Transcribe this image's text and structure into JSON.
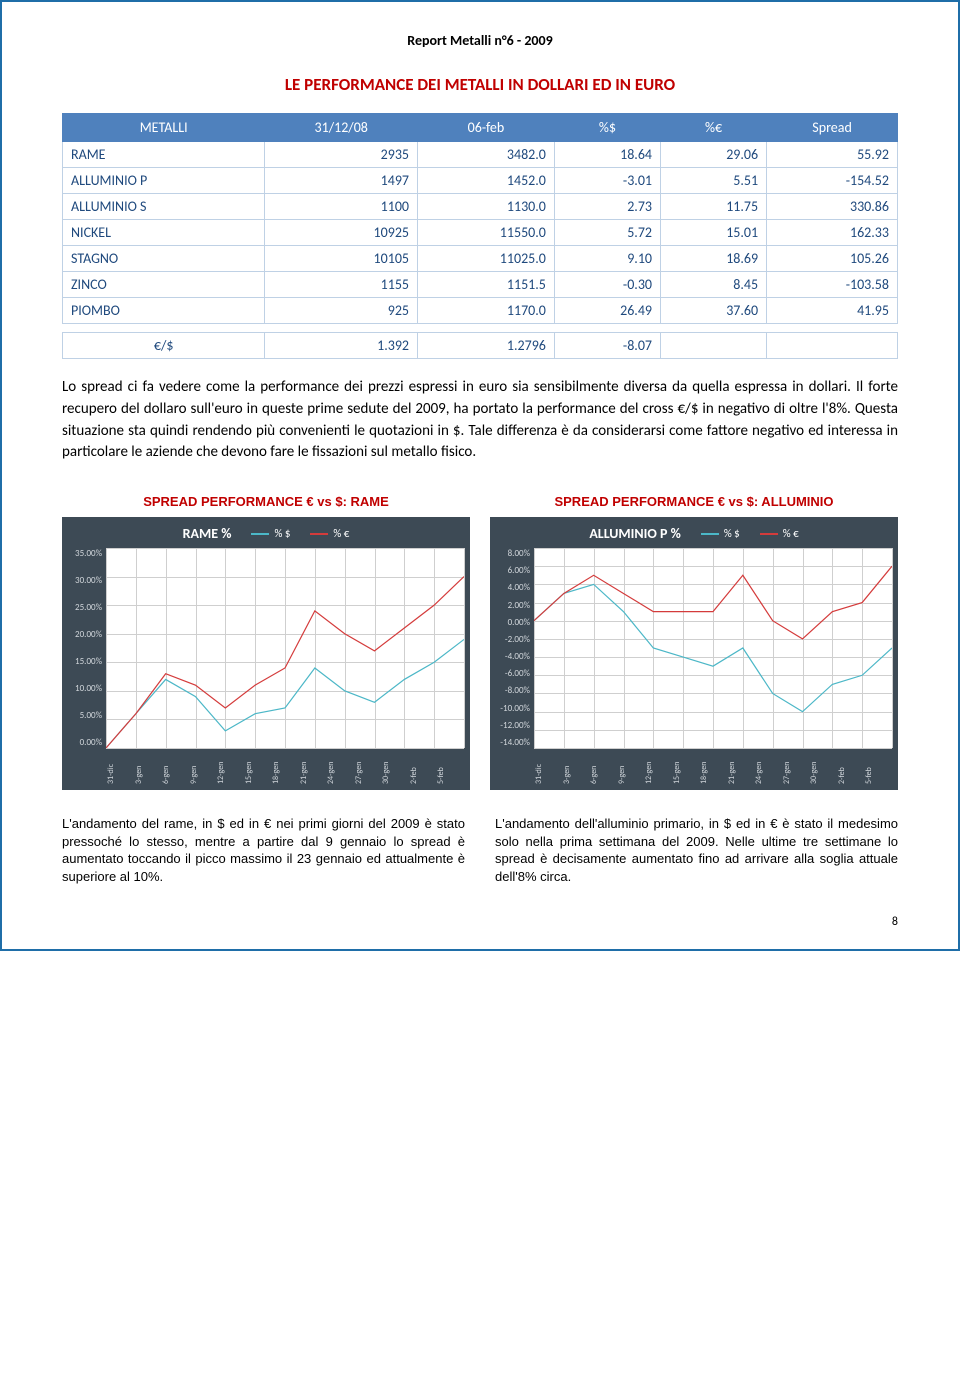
{
  "header": "Report Metalli   n°6 - 2009",
  "section_title": "LE PERFORMANCE DEI METALLI IN DOLLARI ED IN EURO",
  "table": {
    "columns": [
      "METALLI",
      "31/12/08",
      "06-feb",
      "%$",
      "%€",
      "Spread"
    ],
    "rows": [
      [
        "RAME",
        "2935",
        "3482.0",
        "18.64",
        "29.06",
        "55.92"
      ],
      [
        "ALLUMINIO P",
        "1497",
        "1452.0",
        "-3.01",
        "5.51",
        "-154.52"
      ],
      [
        "ALLUMINIO S",
        "1100",
        "1130.0",
        "2.73",
        "11.75",
        "330.86"
      ],
      [
        "NICKEL",
        "10925",
        "11550.0",
        "5.72",
        "15.01",
        "162.33"
      ],
      [
        "STAGNO",
        "10105",
        "11025.0",
        "9.10",
        "18.69",
        "105.26"
      ],
      [
        "ZINCO",
        "1155",
        "1151.5",
        "-0.30",
        "8.45",
        "-103.58"
      ],
      [
        "PIOMBO",
        "925",
        "1170.0",
        "26.49",
        "37.60",
        "41.95"
      ]
    ],
    "footer": [
      "€/$",
      "1.392",
      "1.2796",
      "-8.07",
      "",
      ""
    ]
  },
  "body_text": "Lo spread ci fa vedere come la performance dei prezzi espressi in euro sia sensibilmente diversa da quella espressa in dollari. Il forte recupero del dollaro sull'euro in queste prime sedute del 2009, ha portato la performance del cross €/$ in negativo di oltre l'8%. Questa situazione sta quindi rendendo più convenienti le quotazioni in $. Tale differenza è da considerarsi come fattore negativo ed interessa in particolare le aziende che devono fare le fissazioni sul metallo fisico.",
  "charts": {
    "dates": [
      "31-dic",
      "3-gen",
      "6-gen",
      "9-gen",
      "12-gen",
      "15-gen",
      "18-gen",
      "21-gen",
      "24-gen",
      "27-gen",
      "30-gen",
      "2-feb",
      "5-feb"
    ],
    "legend": {
      "usd": "% $",
      "eur": "% €"
    },
    "colors": {
      "bg": "#3d4a55",
      "plot_bg": "#ffffff",
      "grid": "#cfcfcf",
      "axis_text": "#d0d5da",
      "usd_line": "#4bb7c7",
      "eur_line": "#d43b3b"
    },
    "rame": {
      "title": "SPREAD PERFORMANCE  € vs $: RAME",
      "name": "RAME %",
      "ymin": 0,
      "ymax": 35,
      "ystep": 5,
      "yticks": [
        "35.00%",
        "30.00%",
        "25.00%",
        "20.00%",
        "15.00%",
        "10.00%",
        "5.00%",
        "0.00%"
      ],
      "usd": [
        0,
        6,
        12,
        9,
        3,
        6,
        7,
        14,
        10,
        8,
        12,
        15,
        19
      ],
      "eur": [
        0,
        6,
        13,
        11,
        7,
        11,
        14,
        24,
        20,
        17,
        21,
        25,
        30
      ]
    },
    "alluminio": {
      "title": "SPREAD PERFORMANCE  € vs $: ALLUMINIO",
      "name": "ALLUMINIO P %",
      "ymin": -14,
      "ymax": 8,
      "ystep": 2,
      "yticks": [
        "8.00%",
        "6.00%",
        "4.00%",
        "2.00%",
        "0.00%",
        "-2.00%",
        "-4.00%",
        "-6.00%",
        "-8.00%",
        "-10.00%",
        "-12.00%",
        "-14.00%"
      ],
      "usd": [
        0,
        3,
        4,
        1,
        -3,
        -4,
        -5,
        -3,
        -8,
        -10,
        -7,
        -6,
        -3
      ],
      "eur": [
        0,
        3,
        5,
        3,
        1,
        1,
        1,
        5,
        0,
        -2,
        1,
        2,
        6
      ]
    }
  },
  "notes": {
    "rame": "L'andamento del rame, in $ ed in € nei primi giorni del 2009 è stato pressoché lo stesso, mentre a partire dal 9 gennaio lo spread è aumentato toccando il picco massimo il 23 gennaio ed attualmente è superiore al 10%.",
    "alluminio": "L'andamento dell'alluminio primario, in $ ed in € è stato il medesimo solo nella prima settimana del 2009. Nelle ultime tre settimane lo spread è decisamente aumentato fino ad arrivare alla soglia attuale dell'8% circa."
  },
  "page_number": "8"
}
